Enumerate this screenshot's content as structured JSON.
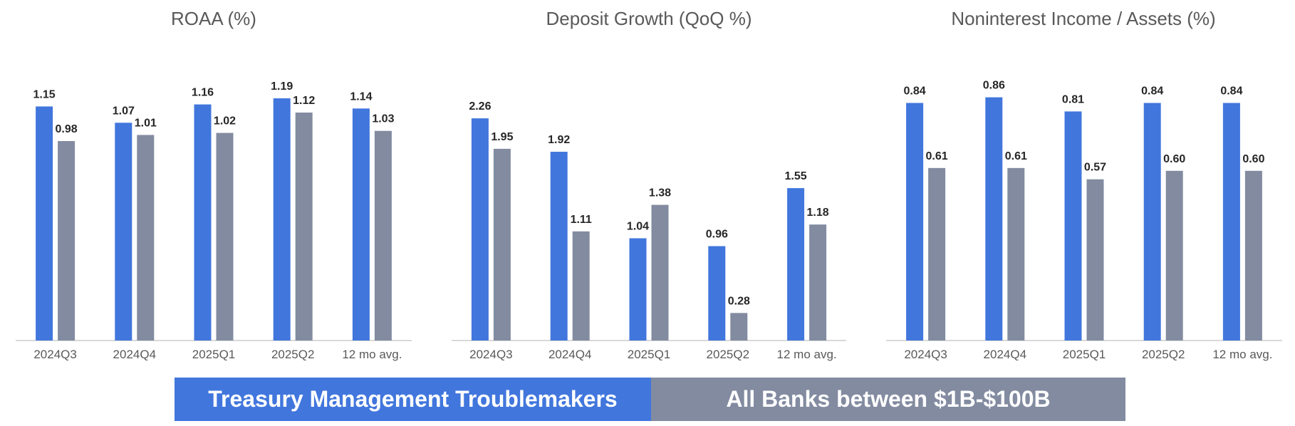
{
  "colors": {
    "series_a": "#4176DD",
    "series_b": "#828BA0",
    "axis": "#D9D9D9",
    "title_text": "#595959",
    "label_text": "#262626",
    "tick_text": "#595959"
  },
  "legend": {
    "series_a_label": "Treasury Management Troublemakers",
    "series_b_label": "All Banks between $1B-$100B"
  },
  "chart_data": [
    {
      "type": "bar",
      "title": "ROAA (%)",
      "categories": [
        "2024Q3",
        "2024Q4",
        "2025Q1",
        "2025Q2",
        "12 mo avg."
      ],
      "series": [
        {
          "name": "Treasury Management Troublemakers",
          "values": [
            1.15,
            1.07,
            1.16,
            1.19,
            1.14
          ]
        },
        {
          "name": "All Banks between $1B-$100B",
          "values": [
            0.98,
            1.01,
            1.02,
            1.12,
            1.03
          ]
        }
      ],
      "ylim": [
        0,
        1.35
      ],
      "grid": false
    },
    {
      "type": "bar",
      "title": "Deposit Growth (QoQ %)",
      "categories": [
        "2024Q3",
        "2024Q4",
        "2025Q1",
        "2025Q2",
        "12 mo avg."
      ],
      "series": [
        {
          "name": "Treasury Management Troublemakers",
          "values": [
            2.26,
            1.92,
            1.04,
            0.96,
            1.55
          ]
        },
        {
          "name": "All Banks between $1B-$100B",
          "values": [
            1.95,
            1.11,
            1.38,
            0.28,
            1.18
          ]
        }
      ],
      "ylim": [
        0,
        2.6
      ],
      "grid": false
    },
    {
      "type": "bar",
      "title": "Noninterest Income / Assets (%)",
      "categories": [
        "2024Q3",
        "2024Q4",
        "2025Q1",
        "2025Q2",
        "12 mo avg."
      ],
      "series": [
        {
          "name": "Treasury Management Troublemakers",
          "values": [
            0.84,
            0.86,
            0.81,
            0.84,
            0.84
          ]
        },
        {
          "name": "All Banks between $1B-$100B",
          "values": [
            0.61,
            0.61,
            0.57,
            0.6,
            0.6
          ]
        }
      ],
      "ylim": [
        0,
        1.0
      ],
      "grid": false
    }
  ]
}
